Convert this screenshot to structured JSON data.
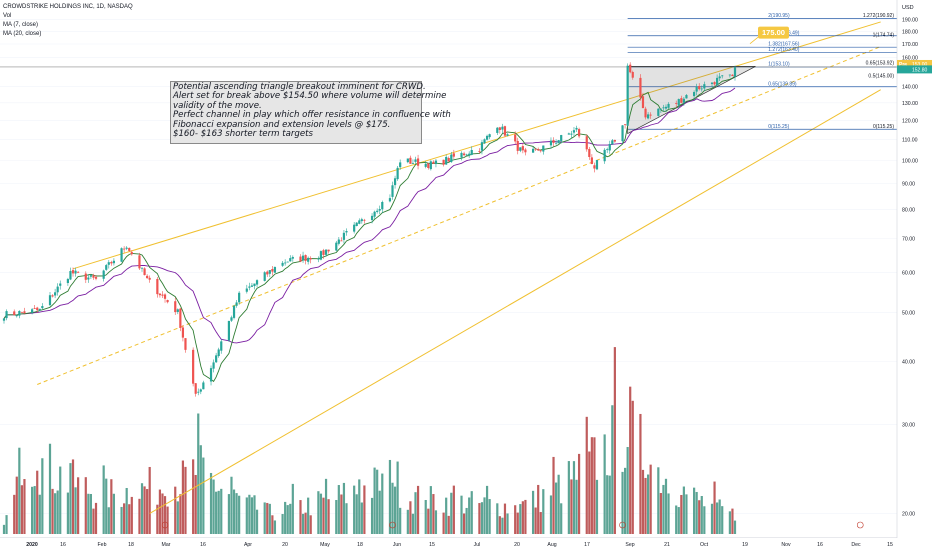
{
  "legend": {
    "symbol": "CROWDSTRIKE HOLDINGS INC, 1D, NASDAQ",
    "vol": "Vol",
    "ma7": "MA (7, close)",
    "ma20": "MA (20, close)"
  },
  "note": {
    "lines": [
      "Potential ascending triangle breakout imminent for CRWD.",
      "Alert set for break above $154.50 where volume will determine",
      "validity of the move.",
      "Perfect channel in play which offer resistance in confluence with",
      "Fibonacci expansion and extension levels @ $175.",
      "$160- $163 shorter term targets"
    ]
  },
  "colors": {
    "up": "#26a69a",
    "down": "#ef5350",
    "volume_up": "#4a9a8a",
    "volume_down": "#b84a4a",
    "ma7": "#2f7d33",
    "ma20": "#7b1fa2",
    "channel": "#f0c030",
    "fib": "#2a5ea8",
    "target_label_bg": "#f5c842",
    "pre_label_bg": "#f4c542",
    "price_label_bg": "#26a69a"
  },
  "target_label": "175.00",
  "chart_data": {
    "type": "candlestick",
    "symbol": "CROWDSTRIKE HOLDINGS INC, 1D, NASDAQ",
    "y_axis": {
      "label": "USD",
      "scale": "log",
      "ticks": [
        20,
        30,
        40,
        50,
        60,
        70,
        80,
        90,
        100,
        110,
        120,
        130,
        140,
        160,
        170,
        180,
        190
      ],
      "tick_labels": [
        "20.00",
        "30.00",
        "40.00",
        "50.00",
        "60.00",
        "70.00",
        "80.00",
        "90.00",
        "100.00",
        "110.00",
        "120.00",
        "130.00",
        "140.00",
        "160.00",
        "170.00",
        "180.00",
        "190.00"
      ]
    },
    "x_axis": {
      "labels": [
        "2020",
        "16",
        "Feb",
        "18",
        "Mar",
        "16",
        "Apr",
        "20",
        "May",
        "18",
        "Jun",
        "15",
        "Jul",
        "20",
        "Aug",
        "17",
        "Sep",
        "21",
        "Oct",
        "19",
        "Nov",
        "16",
        "Dec",
        "15"
      ],
      "start": "2020-01-02",
      "end": "2020-12-18"
    },
    "price_path": [
      [
        "2020-01-02",
        49.5
      ],
      [
        "2020-01-16",
        50.5
      ],
      [
        "2020-01-28",
        60
      ],
      [
        "2020-02-07",
        58
      ],
      [
        "2020-02-19",
        68
      ],
      [
        "2020-02-27",
        58
      ],
      [
        "2020-03-10",
        50
      ],
      [
        "2020-03-17",
        34
      ],
      [
        "2020-03-24",
        40
      ],
      [
        "2020-04-03",
        54
      ],
      [
        "2020-04-20",
        63
      ],
      [
        "2020-05-05",
        65
      ],
      [
        "2020-05-20",
        75
      ],
      [
        "2020-06-01",
        85
      ],
      [
        "2020-06-05",
        100
      ],
      [
        "2020-06-18",
        98
      ],
      [
        "2020-07-06",
        106
      ],
      [
        "2020-07-13",
        118
      ],
      [
        "2020-07-24",
        102
      ],
      [
        "2020-08-03",
        108
      ],
      [
        "2020-08-13",
        115
      ],
      [
        "2020-08-20",
        97
      ],
      [
        "2020-08-27",
        108
      ],
      [
        "2020-09-01",
        119
      ],
      [
        "2020-09-02",
        154
      ],
      [
        "2020-09-09",
        123
      ],
      [
        "2020-09-21",
        130
      ],
      [
        "2020-09-28",
        138
      ],
      [
        "2020-10-08",
        145
      ],
      [
        "2020-10-13",
        146
      ],
      [
        "2020-10-14",
        153
      ]
    ],
    "volume_path": [
      [
        "2020-01-02",
        6
      ],
      [
        "2020-01-09",
        44
      ],
      [
        "2020-02-10",
        20
      ],
      [
        "2020-03-13",
        28
      ],
      [
        "2020-03-18",
        34
      ],
      [
        "2020-04-15",
        11
      ],
      [
        "2020-06-03",
        30
      ],
      [
        "2020-06-08",
        19
      ],
      [
        "2020-07-20",
        14
      ],
      [
        "2020-09-02",
        58
      ],
      [
        "2020-09-08",
        42
      ],
      [
        "2020-10-14",
        10
      ]
    ],
    "last_price": 152.8,
    "last_price_label": "152.80",
    "pre_market": {
      "label": "Pre",
      "value": "153.00"
    },
    "fibonacci": [
      {
        "label": "2(190.95)",
        "value": 190.95
      },
      {
        "label": "1.618(176.49)",
        "value": 176.49
      },
      {
        "label": "1.382(167.56)",
        "value": 167.56
      },
      {
        "label": "1.272(163.40)",
        "value": 163.4
      },
      {
        "label": "1(153.10)",
        "value": 153.1
      },
      {
        "label": "0.65(139.89)",
        "value": 139.89
      },
      {
        "label": "0(115.25)",
        "value": 115.25
      }
    ],
    "right_levels": [
      {
        "label": "1.272(190.92)",
        "value": 190.92
      },
      {
        "label": "1(174.74)",
        "value": 174.74
      },
      {
        "label": "0.65(153.92)",
        "value": 153.92
      },
      {
        "label": "0.5(145.00)",
        "value": 145.0
      },
      {
        "label": "0(115.25)",
        "value": 115.25
      }
    ],
    "channel": {
      "upper": [
        [
          "2020-01-29",
          61
        ],
        [
          "2020-12-10",
          188
        ]
      ],
      "middle_dashed": [
        [
          "2020-01-15",
          36
        ],
        [
          "2020-12-10",
          168
        ]
      ],
      "lower": [
        [
          "2020-02-28",
          20
        ],
        [
          "2020-12-10",
          138
        ]
      ]
    },
    "triangle": {
      "points": [
        [
          "2020-09-02",
          153.5
        ],
        [
          "2020-10-22",
          153.5
        ],
        [
          "2020-09-02",
          113
        ]
      ],
      "apex_date": "2020-10-22"
    },
    "target": {
      "value": 175.0,
      "label": "175.00"
    }
  }
}
